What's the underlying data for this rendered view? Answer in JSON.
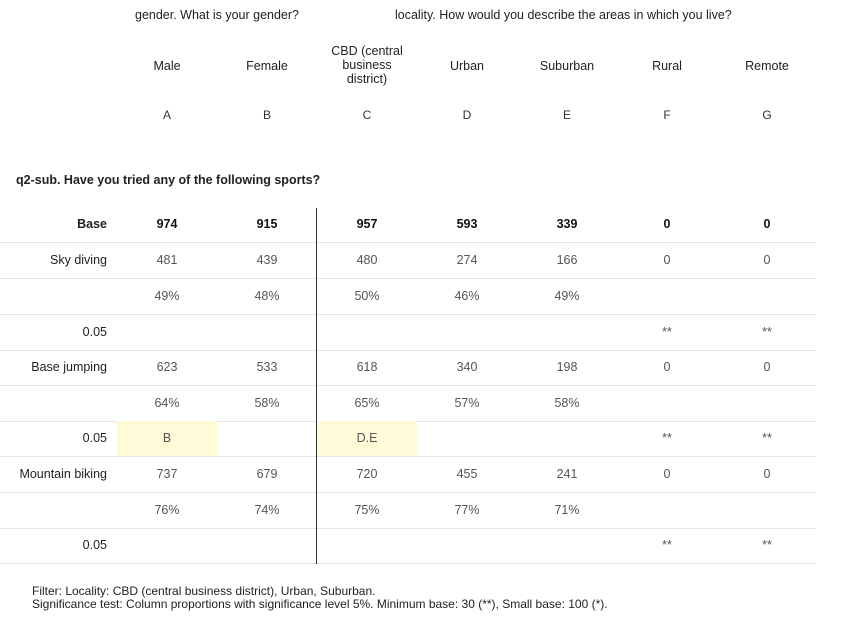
{
  "banners": {
    "gender": "gender. What is your gender?",
    "locality": "locality. How would you describe the areas in which you live?"
  },
  "columns": [
    {
      "label": "Male",
      "letter": "A"
    },
    {
      "label": "Female",
      "letter": "B"
    },
    {
      "label": "CBD (central business district)",
      "letter": "C"
    },
    {
      "label": "Urban",
      "letter": "D"
    },
    {
      "label": "Suburban",
      "letter": "E"
    },
    {
      "label": "Rural",
      "letter": "F"
    },
    {
      "label": "Remote",
      "letter": "G"
    }
  ],
  "question": "q2-sub. Have you tried any of the following sports?",
  "rows": [
    {
      "label": "Base",
      "cells": [
        "974",
        "915",
        "957",
        "593",
        "339",
        "0",
        "0"
      ]
    },
    {
      "label": "Sky diving",
      "cells": [
        "481",
        "439",
        "480",
        "274",
        "166",
        "0",
        "0"
      ]
    },
    {
      "label": "",
      "cells": [
        "49%",
        "48%",
        "50%",
        "46%",
        "49%",
        "",
        ""
      ]
    },
    {
      "label": "0.05",
      "cells": [
        "",
        "",
        "",
        "",
        "",
        "**",
        "**"
      ]
    },
    {
      "label": "Base jumping",
      "cells": [
        "623",
        "533",
        "618",
        "340",
        "198",
        "0",
        "0"
      ]
    },
    {
      "label": "",
      "cells": [
        "64%",
        "58%",
        "65%",
        "57%",
        "58%",
        "",
        ""
      ]
    },
    {
      "label": "0.05",
      "cells": [
        "B",
        "",
        "D.E",
        "",
        "",
        "**",
        "**"
      ]
    },
    {
      "label": "Mountain biking",
      "cells": [
        "737",
        "679",
        "720",
        "455",
        "241",
        "0",
        "0"
      ]
    },
    {
      "label": "",
      "cells": [
        "76%",
        "74%",
        "75%",
        "77%",
        "71%",
        "",
        ""
      ]
    },
    {
      "label": "0.05",
      "cells": [
        "",
        "",
        "",
        "",
        "",
        "**",
        "**"
      ]
    }
  ],
  "footer": {
    "filter": "Filter: Locality: CBD (central business district), Urban, Suburban.",
    "significance": "Significance test: Column proportions with significance level 5%. Minimum base: 30 (**), Small base: 100 (*)."
  }
}
